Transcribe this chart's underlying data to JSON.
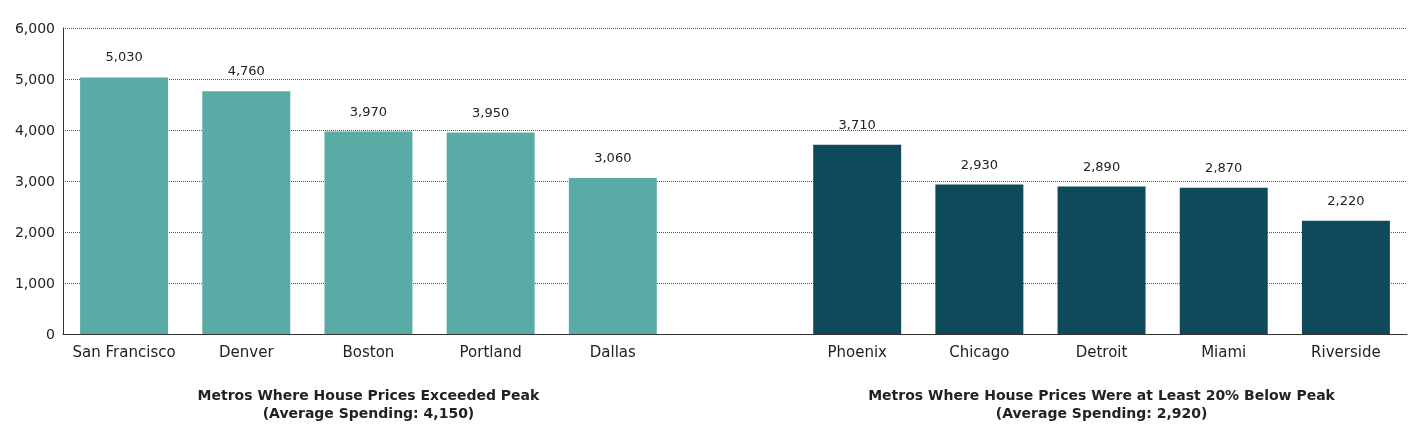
{
  "chart_data": {
    "type": "bar",
    "categories": [
      "San Francisco",
      "Denver",
      "Boston",
      "Portland",
      "Dallas",
      null,
      "Phoenix",
      "Chicago",
      "Detroit",
      "Miami",
      "Riverside"
    ],
    "values": [
      5030,
      4760,
      3970,
      3950,
      3060,
      null,
      3710,
      2930,
      2890,
      2870,
      2220
    ],
    "value_labels": [
      "5,030",
      "4,760",
      "3,970",
      "3,950",
      "3,060",
      null,
      "3,710",
      "2,930",
      "2,890",
      "2,870",
      "2,220"
    ],
    "colors": [
      "#5aaba5",
      "#5aaba5",
      "#5aaba5",
      "#5aaba5",
      "#5aaba5",
      null,
      "#0e4a5a",
      "#0e4a5a",
      "#0e4a5a",
      "#0e4a5a",
      "#0e4a5a"
    ],
    "ylim": [
      0,
      6000
    ],
    "yticks": [
      0,
      {
        "value": 1000,
        "label": "1,000"
      },
      {
        "value": 2000,
        "label": "2,000"
      },
      {
        "value": 3000,
        "label": "3,000"
      },
      {
        "value": 4000,
        "label": "4,000"
      },
      {
        "value": 5000,
        "label": "5,000"
      },
      {
        "value": 6000,
        "label": "6,000"
      }
    ],
    "grid": "y",
    "annotations": [
      "Metros Where House Prices Exceeded Peak\n(Average Spending: 4,150)",
      "Metros Where House Prices Were at Least 20% Below Peak\n(Average Spending: 2,920)"
    ]
  }
}
